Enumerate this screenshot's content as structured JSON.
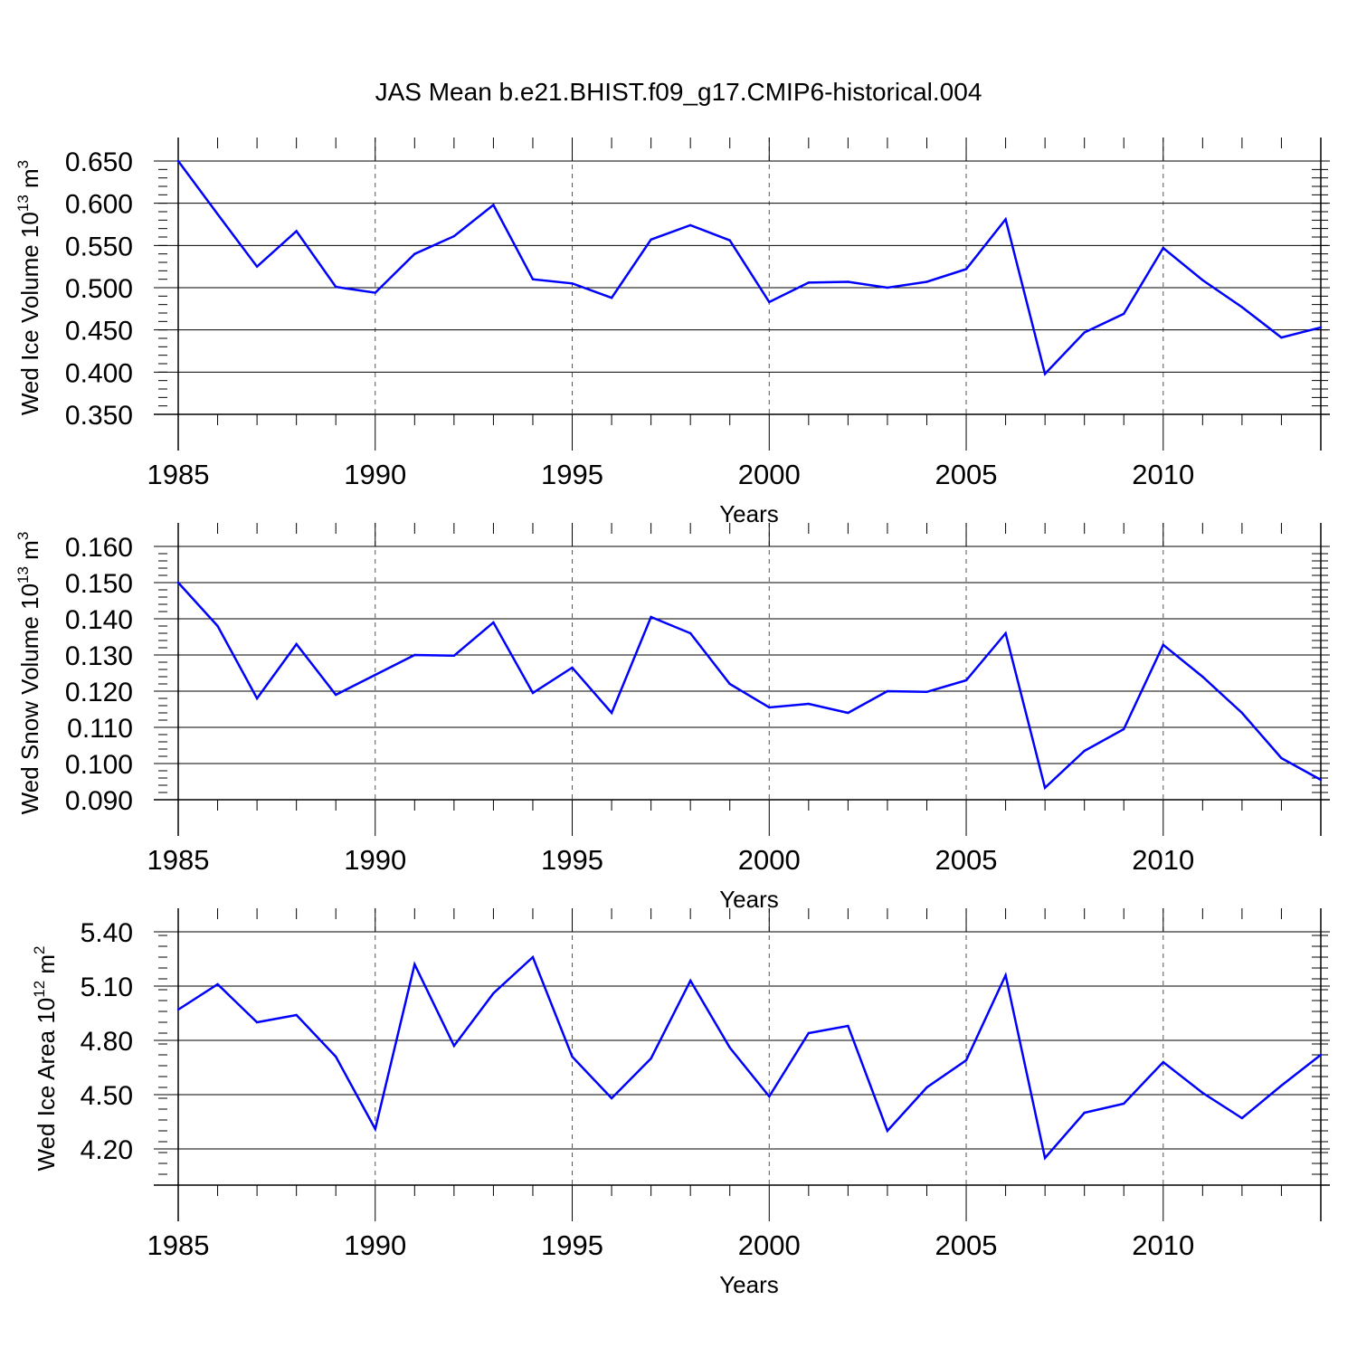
{
  "title": "JAS Mean b.e21.BHIST.f09_g17.CMIP6-historical.004",
  "line_color": "#0000ff",
  "chart_data": [
    {
      "type": "line",
      "ylabel": "Wed Ice Volume 10",
      "ylabel_exp": "13",
      "ylabel_unit": " m",
      "ylabel_unit_exp": "3",
      "xlabel": "Years",
      "xlim": [
        1985,
        2014
      ],
      "ylim": [
        0.35,
        0.65
      ],
      "yticks": [
        0.35,
        0.4,
        0.45,
        0.5,
        0.55,
        0.6,
        0.65
      ],
      "ytick_labels": [
        "0.350",
        "0.400",
        "0.450",
        "0.500",
        "0.550",
        "0.600",
        "0.650"
      ],
      "xticks": [
        1985,
        1990,
        1995,
        2000,
        2005,
        2010
      ],
      "xtick_labels": [
        "1985",
        "1990",
        "1995",
        "2000",
        "2005",
        "2010"
      ],
      "x": [
        1985,
        1986,
        1987,
        1988,
        1989,
        1990,
        1991,
        1992,
        1993,
        1994,
        1995,
        1996,
        1997,
        1998,
        1999,
        2000,
        2001,
        2002,
        2003,
        2004,
        2005,
        2006,
        2007,
        2008,
        2009,
        2010,
        2011,
        2012,
        2013,
        2014
      ],
      "values": [
        0.65,
        0.587,
        0.525,
        0.567,
        0.501,
        0.494,
        0.54,
        0.561,
        0.598,
        0.51,
        0.505,
        0.488,
        0.557,
        0.574,
        0.556,
        0.483,
        0.506,
        0.507,
        0.5,
        0.507,
        0.522,
        0.581,
        0.398,
        0.447,
        0.469,
        0.547,
        0.509,
        0.477,
        0.441,
        0.453
      ]
    },
    {
      "type": "line",
      "ylabel": "Wed Snow Volume 10",
      "ylabel_exp": "13",
      "ylabel_unit": " m",
      "ylabel_unit_exp": "3",
      "xlabel": "Years",
      "xlim": [
        1985,
        2014
      ],
      "ylim": [
        0.09,
        0.16
      ],
      "yticks": [
        0.09,
        0.1,
        0.11,
        0.12,
        0.13,
        0.14,
        0.15,
        0.16
      ],
      "ytick_labels": [
        "0.090",
        "0.100",
        "0.110",
        "0.120",
        "0.130",
        "0.140",
        "0.150",
        "0.160"
      ],
      "xticks": [
        1985,
        1990,
        1995,
        2000,
        2005,
        2010
      ],
      "xtick_labels": [
        "1985",
        "1990",
        "1995",
        "2000",
        "2005",
        "2010"
      ],
      "x": [
        1985,
        1986,
        1987,
        1988,
        1989,
        1990,
        1991,
        1992,
        1993,
        1994,
        1995,
        1996,
        1997,
        1998,
        1999,
        2000,
        2001,
        2002,
        2003,
        2004,
        2005,
        2006,
        2007,
        2008,
        2009,
        2010,
        2011,
        2012,
        2013,
        2014
      ],
      "values": [
        0.15,
        0.138,
        0.118,
        0.133,
        0.119,
        0.1245,
        0.13,
        0.1298,
        0.139,
        0.1195,
        0.1265,
        0.114,
        0.1405,
        0.136,
        0.122,
        0.1155,
        0.1165,
        0.114,
        0.12,
        0.1198,
        0.123,
        0.136,
        0.0933,
        0.1035,
        0.1095,
        0.1328,
        0.124,
        0.114,
        0.1015,
        0.0955
      ]
    },
    {
      "type": "line",
      "ylabel": "Wed Ice Area 10",
      "ylabel_exp": "12",
      "ylabel_unit": " m",
      "ylabel_unit_exp": "2",
      "xlabel": "Years",
      "xlim": [
        1985,
        2014
      ],
      "ylim": [
        4.0,
        5.4
      ],
      "yticks": [
        4.2,
        4.5,
        4.8,
        5.1,
        5.4
      ],
      "ytick_labels": [
        "4.20",
        "4.50",
        "4.80",
        "5.10",
        "5.40"
      ],
      "xticks": [
        1985,
        1990,
        1995,
        2000,
        2005,
        2010
      ],
      "xtick_labels": [
        "1985",
        "1990",
        "1995",
        "2000",
        "2005",
        "2010"
      ],
      "x": [
        1985,
        1986,
        1987,
        1988,
        1989,
        1990,
        1991,
        1992,
        1993,
        1994,
        1995,
        1996,
        1997,
        1998,
        1999,
        2000,
        2001,
        2002,
        2003,
        2004,
        2005,
        2006,
        2007,
        2008,
        2009,
        2010,
        2011,
        2012,
        2013,
        2014
      ],
      "values": [
        4.97,
        5.11,
        4.9,
        4.94,
        4.71,
        4.31,
        5.22,
        4.77,
        5.06,
        5.26,
        4.71,
        4.48,
        4.7,
        5.13,
        4.76,
        4.49,
        4.84,
        4.88,
        4.3,
        4.54,
        4.69,
        5.16,
        4.15,
        4.4,
        4.45,
        4.68,
        4.51,
        4.37,
        4.55,
        4.72
      ]
    }
  ]
}
